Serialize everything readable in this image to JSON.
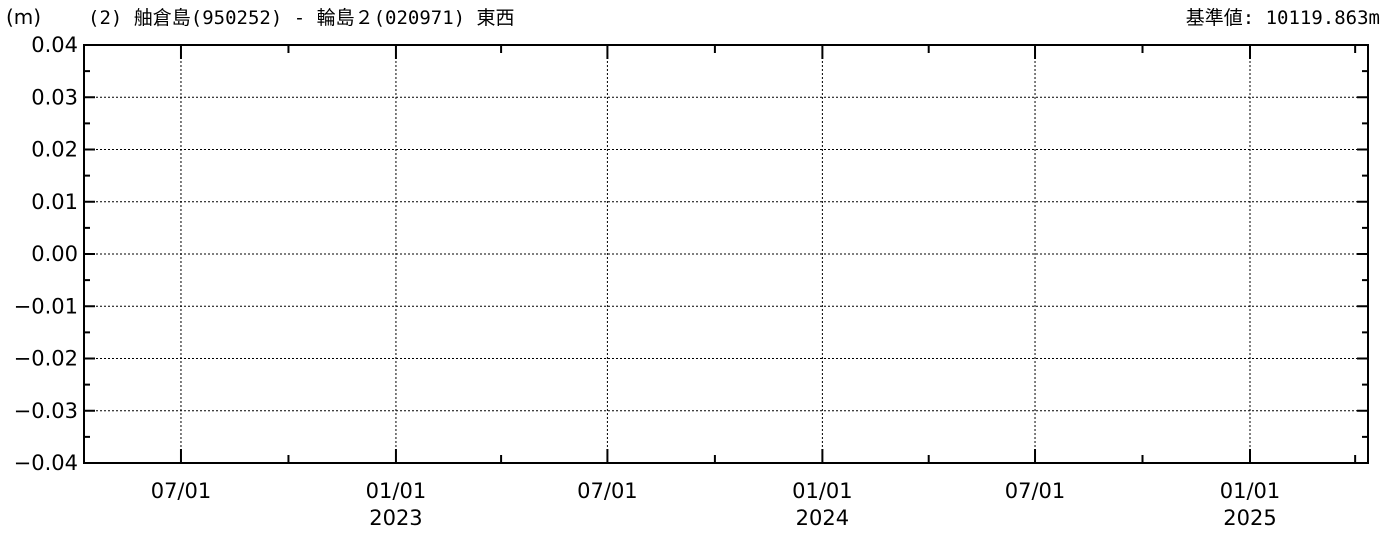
{
  "header": {
    "unit": "(m)",
    "title": "(2) 舳倉島(950252) - 輪島２(020971) 東西",
    "reference": "基準値: 10119.863m"
  },
  "chart_data": {
    "type": "line",
    "title": "(2) 舳倉島(950252) - 輪島２(020971) 東西",
    "ylabel": "(m)",
    "xlabel": "",
    "ylim": [
      -0.04,
      0.04
    ],
    "xlim": [
      "2022-04-09",
      "2025-04-12"
    ],
    "grid": true,
    "yticks": [
      {
        "value": 0.04,
        "label": "0.04"
      },
      {
        "value": 0.03,
        "label": "0.03"
      },
      {
        "value": 0.02,
        "label": "0.02"
      },
      {
        "value": 0.01,
        "label": "0.01"
      },
      {
        "value": 0.0,
        "label": "0.00"
      },
      {
        "value": -0.01,
        "label": "−0.01"
      },
      {
        "value": -0.02,
        "label": "−0.02"
      },
      {
        "value": -0.03,
        "label": "−0.03"
      },
      {
        "value": -0.04,
        "label": "−0.04"
      }
    ],
    "xticks": [
      {
        "date": "2022-07-01",
        "label": "07/01",
        "year": ""
      },
      {
        "date": "2023-01-01",
        "label": "01/01",
        "year": "2023"
      },
      {
        "date": "2023-07-01",
        "label": "07/01",
        "year": ""
      },
      {
        "date": "2024-01-01",
        "label": "01/01",
        "year": "2024"
      },
      {
        "date": "2024-07-01",
        "label": "07/01",
        "year": ""
      },
      {
        "date": "2025-01-01",
        "label": "01/01",
        "year": "2025"
      }
    ],
    "minor_xticks": [
      "2022-10-01",
      "2023-04-01",
      "2023-10-01",
      "2024-04-01",
      "2024-10-01",
      "2025-04-01"
    ],
    "series": []
  }
}
